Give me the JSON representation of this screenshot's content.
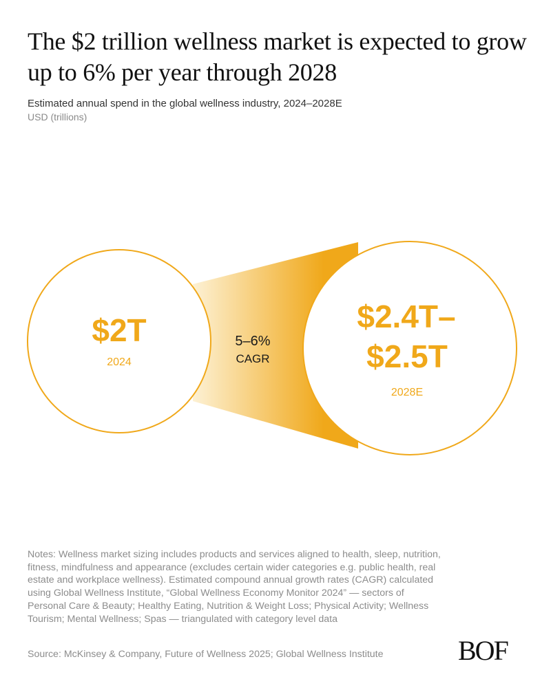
{
  "header": {
    "title": "The $2 trillion wellness market is expected to grow up to 6% per year through 2028",
    "subtitle": "Estimated annual spend in the global wellness industry, 2024–2028E",
    "units": "USD (trillions)"
  },
  "chart_data": {
    "type": "bubble-comparison",
    "points": [
      {
        "label": "2024",
        "value_text": "$2T",
        "value": 2.0
      },
      {
        "label": "2028E",
        "value_text_lines": [
          "$2.4T–",
          "$2.5T"
        ],
        "value_range": [
          2.4,
          2.5
        ]
      }
    ],
    "growth": {
      "value_text": "5–6%",
      "label": "CAGR",
      "range": [
        5,
        6
      ]
    }
  },
  "footer": {
    "notes": "Notes: Wellness market sizing includes products and services aligned to health, sleep, nutrition, fitness, mindfulness and appearance (excludes certain wider categories e.g. public health, real estate and workplace wellness). Estimated compound annual growth rates (CAGR) calculated using Global Wellness Institute, “Global Wellness Economy Monitor 2024” — sectors of Personal Care & Beauty; Healthy Eating, Nutrition & Weight Loss; Physical Activity; Wellness Tourism; Mental Wellness; Spas — triangulated with category level data",
    "source": "Source: McKinsey & Company, Future of Wellness 2025; Global Wellness Institute",
    "logo": "BOF"
  },
  "colors": {
    "accent": "#f0a81a",
    "gradient_start": "#fdf1d4",
    "gradient_end": "#f0a81a",
    "text": "#1a1a1a",
    "muted": "#8c8c8c"
  }
}
